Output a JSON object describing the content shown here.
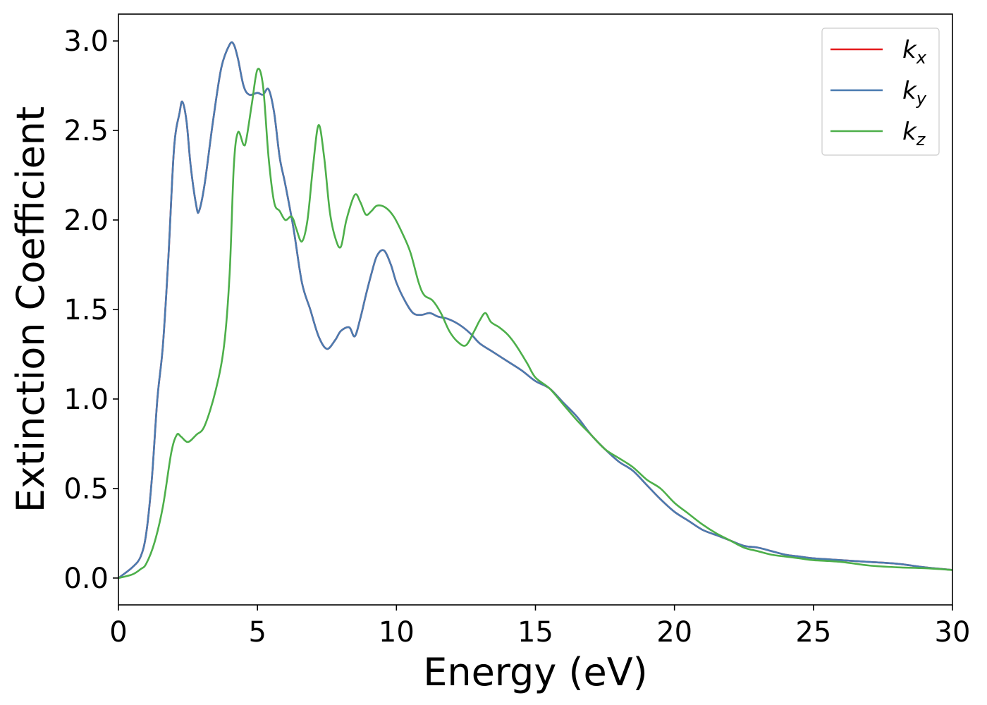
{
  "chart_data": {
    "type": "line",
    "xlabel": "Energy (eV)",
    "ylabel": "Extinction Coefficient",
    "xlim": [
      0,
      30
    ],
    "ylim": [
      -0.15,
      3.15
    ],
    "xticks": [
      0,
      5,
      10,
      15,
      20,
      25,
      30
    ],
    "yticks": [
      0.0,
      0.5,
      1.0,
      1.5,
      2.0,
      2.5,
      3.0
    ],
    "xtick_labels": [
      "0",
      "5",
      "10",
      "15",
      "20",
      "25",
      "30"
    ],
    "ytick_labels": [
      "0.0",
      "0.5",
      "1.0",
      "1.5",
      "2.0",
      "2.5",
      "3.0"
    ],
    "grid": false,
    "legend": "top-right",
    "series": [
      {
        "name": "k_x",
        "label_base": "k",
        "label_sub": "x",
        "color": "#e41a1c",
        "x": [
          0,
          0.5,
          0.8,
          1.0,
          1.2,
          1.4,
          1.6,
          1.8,
          2.0,
          2.2,
          2.3,
          2.45,
          2.6,
          2.8,
          2.9,
          3.1,
          3.4,
          3.7,
          4.0,
          4.15,
          4.3,
          4.5,
          4.7,
          5.0,
          5.2,
          5.4,
          5.6,
          5.8,
          6.0,
          6.3,
          6.6,
          6.9,
          7.2,
          7.5,
          7.8,
          8.0,
          8.3,
          8.5,
          8.7,
          8.9,
          9.1,
          9.3,
          9.55,
          9.8,
          10.0,
          10.3,
          10.6,
          10.9,
          11.2,
          11.5,
          11.8,
          12.1,
          12.4,
          12.7,
          13.0,
          13.5,
          14.0,
          14.5,
          15.0,
          15.5,
          16.0,
          16.5,
          17.0,
          17.5,
          18.0,
          18.5,
          19.0,
          19.5,
          20.0,
          20.5,
          21.0,
          21.5,
          22.0,
          22.5,
          23.0,
          23.5,
          24.0,
          24.5,
          25.0,
          26.0,
          27.0,
          28.0,
          29.0,
          30.0
        ],
        "y": [
          0.0,
          0.06,
          0.12,
          0.25,
          0.55,
          1.0,
          1.3,
          1.8,
          2.4,
          2.6,
          2.66,
          2.55,
          2.3,
          2.08,
          2.05,
          2.2,
          2.55,
          2.85,
          2.98,
          2.98,
          2.9,
          2.75,
          2.7,
          2.71,
          2.7,
          2.73,
          2.6,
          2.35,
          2.2,
          1.95,
          1.65,
          1.5,
          1.35,
          1.28,
          1.33,
          1.38,
          1.4,
          1.35,
          1.45,
          1.58,
          1.7,
          1.8,
          1.83,
          1.75,
          1.65,
          1.55,
          1.48,
          1.47,
          1.48,
          1.46,
          1.45,
          1.43,
          1.4,
          1.36,
          1.31,
          1.26,
          1.21,
          1.16,
          1.1,
          1.06,
          0.98,
          0.9,
          0.8,
          0.72,
          0.65,
          0.6,
          0.52,
          0.44,
          0.37,
          0.32,
          0.27,
          0.24,
          0.21,
          0.18,
          0.17,
          0.15,
          0.13,
          0.12,
          0.11,
          0.1,
          0.09,
          0.08,
          0.06,
          0.045
        ]
      },
      {
        "name": "k_y",
        "label_base": "k",
        "label_sub": "y",
        "color": "#4a7bb0",
        "x": [
          0,
          0.5,
          0.8,
          1.0,
          1.2,
          1.4,
          1.6,
          1.8,
          2.0,
          2.2,
          2.3,
          2.45,
          2.6,
          2.8,
          2.9,
          3.1,
          3.4,
          3.7,
          4.0,
          4.15,
          4.3,
          4.5,
          4.7,
          5.0,
          5.2,
          5.4,
          5.6,
          5.8,
          6.0,
          6.3,
          6.6,
          6.9,
          7.2,
          7.5,
          7.8,
          8.0,
          8.3,
          8.5,
          8.7,
          8.9,
          9.1,
          9.3,
          9.55,
          9.8,
          10.0,
          10.3,
          10.6,
          10.9,
          11.2,
          11.5,
          11.8,
          12.1,
          12.4,
          12.7,
          13.0,
          13.5,
          14.0,
          14.5,
          15.0,
          15.5,
          16.0,
          16.5,
          17.0,
          17.5,
          18.0,
          18.5,
          19.0,
          19.5,
          20.0,
          20.5,
          21.0,
          21.5,
          22.0,
          22.5,
          23.0,
          23.5,
          24.0,
          24.5,
          25.0,
          26.0,
          27.0,
          28.0,
          29.0,
          30.0
        ],
        "y": [
          0.0,
          0.06,
          0.12,
          0.25,
          0.55,
          1.0,
          1.3,
          1.8,
          2.4,
          2.6,
          2.66,
          2.55,
          2.3,
          2.08,
          2.05,
          2.2,
          2.55,
          2.85,
          2.98,
          2.98,
          2.9,
          2.75,
          2.7,
          2.71,
          2.7,
          2.73,
          2.6,
          2.35,
          2.2,
          1.95,
          1.65,
          1.5,
          1.35,
          1.28,
          1.33,
          1.38,
          1.4,
          1.35,
          1.45,
          1.58,
          1.7,
          1.8,
          1.83,
          1.75,
          1.65,
          1.55,
          1.48,
          1.47,
          1.48,
          1.46,
          1.45,
          1.43,
          1.4,
          1.36,
          1.31,
          1.26,
          1.21,
          1.16,
          1.1,
          1.06,
          0.98,
          0.9,
          0.8,
          0.72,
          0.65,
          0.6,
          0.52,
          0.44,
          0.37,
          0.32,
          0.27,
          0.24,
          0.21,
          0.18,
          0.17,
          0.15,
          0.13,
          0.12,
          0.11,
          0.1,
          0.09,
          0.08,
          0.06,
          0.045
        ]
      },
      {
        "name": "k_z",
        "label_base": "k",
        "label_sub": "z",
        "color": "#4daf4a",
        "x": [
          0,
          0.5,
          0.8,
          1.0,
          1.3,
          1.6,
          1.9,
          2.1,
          2.25,
          2.5,
          2.8,
          3.1,
          3.5,
          3.8,
          4.0,
          4.15,
          4.3,
          4.5,
          4.6,
          4.8,
          5.0,
          5.2,
          5.4,
          5.6,
          5.8,
          6.0,
          6.2,
          6.3,
          6.4,
          6.6,
          6.8,
          7.0,
          7.2,
          7.4,
          7.6,
          7.8,
          8.0,
          8.2,
          8.5,
          8.7,
          8.9,
          9.1,
          9.3,
          9.6,
          9.9,
          10.2,
          10.5,
          10.8,
          11.0,
          11.3,
          11.6,
          11.9,
          12.2,
          12.5,
          12.8,
          13.0,
          13.2,
          13.4,
          13.7,
          14.0,
          14.3,
          14.7,
          15.0,
          15.5,
          16.0,
          16.5,
          17.0,
          17.5,
          18.0,
          18.5,
          19.0,
          19.5,
          20.0,
          20.5,
          21.0,
          21.5,
          22.0,
          22.5,
          23.0,
          23.5,
          24.0,
          24.5,
          25.0,
          26.0,
          27.0,
          28.0,
          29.0,
          30.0
        ],
        "y": [
          0.0,
          0.02,
          0.05,
          0.08,
          0.2,
          0.4,
          0.7,
          0.8,
          0.79,
          0.76,
          0.8,
          0.85,
          1.05,
          1.3,
          1.7,
          2.3,
          2.49,
          2.42,
          2.45,
          2.65,
          2.84,
          2.75,
          2.35,
          2.1,
          2.05,
          2.0,
          2.02,
          2.0,
          1.95,
          1.88,
          2.0,
          2.3,
          2.53,
          2.35,
          2.05,
          1.9,
          1.85,
          2.0,
          2.14,
          2.1,
          2.03,
          2.05,
          2.08,
          2.07,
          2.02,
          1.93,
          1.82,
          1.65,
          1.58,
          1.55,
          1.48,
          1.38,
          1.32,
          1.3,
          1.38,
          1.44,
          1.48,
          1.43,
          1.4,
          1.36,
          1.3,
          1.2,
          1.12,
          1.06,
          0.97,
          0.88,
          0.8,
          0.72,
          0.67,
          0.62,
          0.55,
          0.5,
          0.42,
          0.36,
          0.3,
          0.25,
          0.21,
          0.17,
          0.15,
          0.13,
          0.12,
          0.11,
          0.1,
          0.09,
          0.07,
          0.06,
          0.055,
          0.045
        ]
      }
    ]
  }
}
